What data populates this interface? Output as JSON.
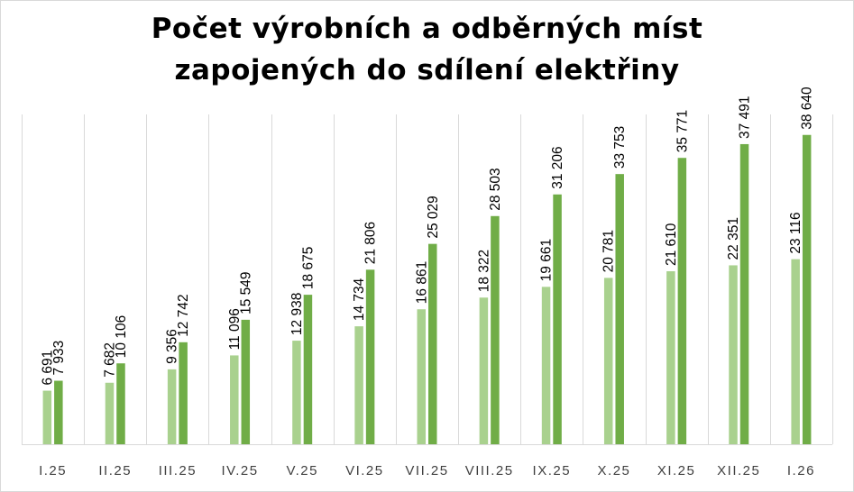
{
  "chart_data": {
    "type": "bar",
    "title_lines": [
      "Počet výrobních a odběrných míst",
      "zapojených do sdílení elektřiny"
    ],
    "categories": [
      "I.25",
      "II.25",
      "III.25",
      "IV.25",
      "V.25",
      "VI.25",
      "VII.25",
      "VIII.25",
      "IX.25",
      "X.25",
      "XI.25",
      "XII.25",
      "I.26"
    ],
    "series": [
      {
        "color": "#a9d18e",
        "values": [
          6691,
          7682,
          9356,
          11096,
          12938,
          14734,
          16861,
          18322,
          19661,
          20781,
          21610,
          22351,
          23116
        ],
        "labels": [
          "6 691",
          "7 682",
          "9 356",
          "11 096",
          "12 938",
          "14 734",
          "16 861",
          "18 322",
          "19 661",
          "20 781",
          "21 610",
          "22 351",
          "23 116"
        ]
      },
      {
        "color": "#70ad47",
        "values": [
          7933,
          10106,
          12742,
          15549,
          18675,
          21806,
          25029,
          28503,
          31206,
          33753,
          35771,
          37491,
          38640
        ],
        "labels": [
          "7 933",
          "10 106",
          "12 742",
          "15 549",
          "18 675",
          "21 806",
          "25 029",
          "28 503",
          "31 206",
          "33 753",
          "35 771",
          "37 491",
          "38 640"
        ]
      }
    ],
    "ylim": [
      0,
      41200
    ],
    "grid": "vertical",
    "legend": "none",
    "axis_color": "#d9d9d9"
  }
}
